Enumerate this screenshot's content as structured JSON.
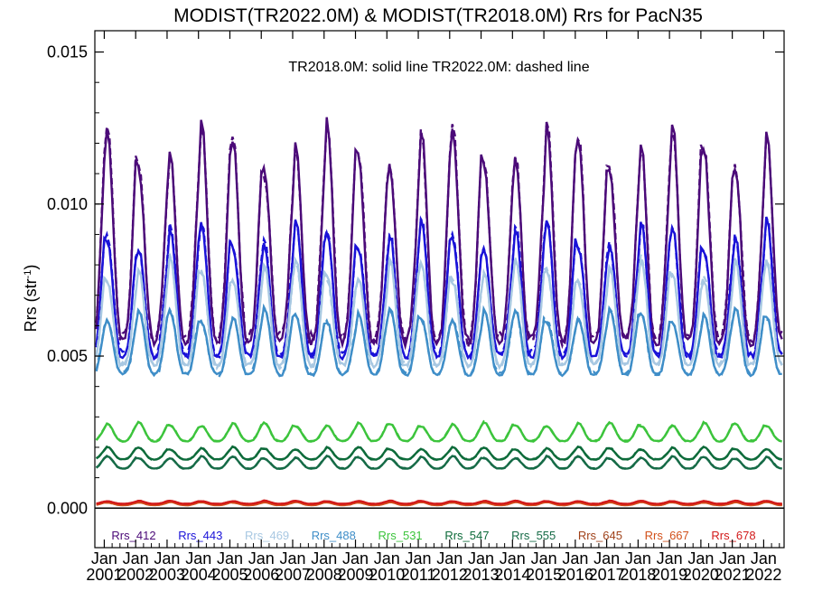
{
  "chart_data": {
    "type": "line",
    "title": "MODIST(TR2022.0M) & MODIST(TR2018.0M)  Rrs for PacN35",
    "annotation": "TR2018.0M: solid line   TR2022.0M: dashed line",
    "ylabel": "Rrs (str",
    "ylabel_sup": "-1",
    "ylabel_close": ")",
    "ylim": [
      -0.0013,
      0.0157
    ],
    "xlim": [
      2000.7,
      2022.65
    ],
    "yticks": [
      "0.000",
      "0.005",
      "0.010",
      "0.015"
    ],
    "ytick_values": [
      0.0,
      0.005,
      0.01,
      0.015
    ],
    "xtick_month": "Jan",
    "xtick_years": [
      "2001",
      "2002",
      "2003",
      "2004",
      "2005",
      "2006",
      "2007",
      "2008",
      "2009",
      "2010",
      "2011",
      "2012",
      "2013",
      "2014",
      "2015",
      "2016",
      "2017",
      "2018",
      "2019",
      "2020",
      "2021",
      "2022"
    ],
    "start_year": 2001,
    "series": [
      {
        "name": "Rrs_412",
        "color": "#4b0a78",
        "lo": 0.0055,
        "hi": 0.0124,
        "peak_phase": 0.1
      },
      {
        "name": "Rrs_443",
        "color": "#1a12d8",
        "lo": 0.005,
        "hi": 0.0093,
        "peak_phase": 0.1
      },
      {
        "name": "Rrs_469",
        "color": "#a8c8e2",
        "lo": 0.0047,
        "hi": 0.0081,
        "peak_phase": 0.1
      },
      {
        "name": "Rrs_488",
        "color": "#3f8ec8",
        "lo": 0.0044,
        "hi": 0.0065,
        "peak_phase": 0.1
      },
      {
        "name": "Rrs_531",
        "color": "#3cc43c",
        "lo": 0.0022,
        "hi": 0.0028,
        "peak_phase": 0.1
      },
      {
        "name": "Rrs_547",
        "color": "#0d6b3a",
        "lo": 0.0016,
        "hi": 0.002,
        "peak_phase": 0.1
      },
      {
        "name": "Rrs_555",
        "color": "#166b47",
        "lo": 0.0013,
        "hi": 0.0017,
        "peak_phase": 0.1
      },
      {
        "name": "Rrs_645",
        "color": "#a0421a",
        "lo": 0.00012,
        "hi": 0.00022,
        "peak_phase": 0.1
      },
      {
        "name": "Rrs_667",
        "color": "#d2501a",
        "lo": 0.0001,
        "hi": 0.0002,
        "peak_phase": 0.1
      },
      {
        "name": "Rrs_678",
        "color": "#d21a1a",
        "lo": 0.00014,
        "hi": 0.00024,
        "peak_phase": 0.1
      }
    ]
  }
}
